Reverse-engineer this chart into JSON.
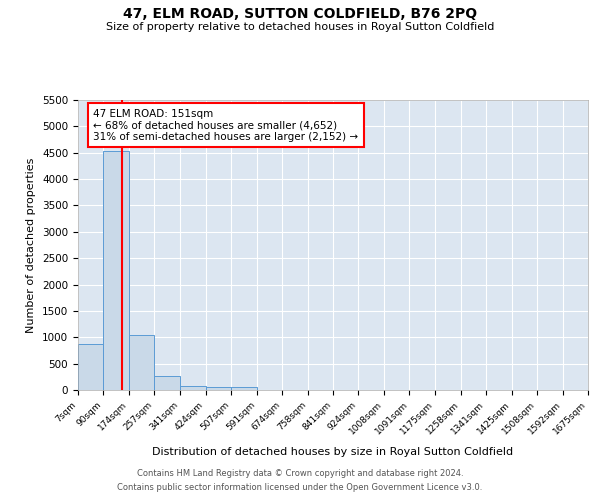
{
  "title": "47, ELM ROAD, SUTTON COLDFIELD, B76 2PQ",
  "subtitle": "Size of property relative to detached houses in Royal Sutton Coldfield",
  "xlabel": "Distribution of detached houses by size in Royal Sutton Coldfield",
  "ylabel": "Number of detached properties",
  "footnote1": "Contains HM Land Registry data © Crown copyright and database right 2024.",
  "footnote2": "Contains public sector information licensed under the Open Government Licence v3.0.",
  "bar_edges": [
    7,
    90,
    174,
    257,
    341,
    424,
    507,
    591,
    674,
    758,
    841,
    924,
    1008,
    1091,
    1175,
    1258,
    1341,
    1425,
    1508,
    1592,
    1675
  ],
  "bar_heights": [
    870,
    4540,
    1040,
    270,
    75,
    55,
    60,
    0,
    0,
    0,
    0,
    0,
    0,
    0,
    0,
    0,
    0,
    0,
    0,
    0
  ],
  "bar_color": "#c9d9e8",
  "bar_edge_color": "#5b9bd5",
  "property_line_x": 151,
  "property_line_color": "red",
  "ylim": [
    0,
    5500
  ],
  "yticks": [
    0,
    500,
    1000,
    1500,
    2000,
    2500,
    3000,
    3500,
    4000,
    4500,
    5000,
    5500
  ],
  "annotation_title": "47 ELM ROAD: 151sqm",
  "annotation_line1": "← 68% of detached houses are smaller (4,652)",
  "annotation_line2": "31% of semi-detached houses are larger (2,152) →",
  "annotation_box_color": "white",
  "annotation_box_edge_color": "red",
  "axes_background_color": "#dce6f1",
  "grid_color": "white",
  "tick_labels": [
    "7sqm",
    "90sqm",
    "174sqm",
    "257sqm",
    "341sqm",
    "424sqm",
    "507sqm",
    "591sqm",
    "674sqm",
    "758sqm",
    "841sqm",
    "924sqm",
    "1008sqm",
    "1091sqm",
    "1175sqm",
    "1258sqm",
    "1341sqm",
    "1425sqm",
    "1508sqm",
    "1592sqm",
    "1675sqm"
  ]
}
